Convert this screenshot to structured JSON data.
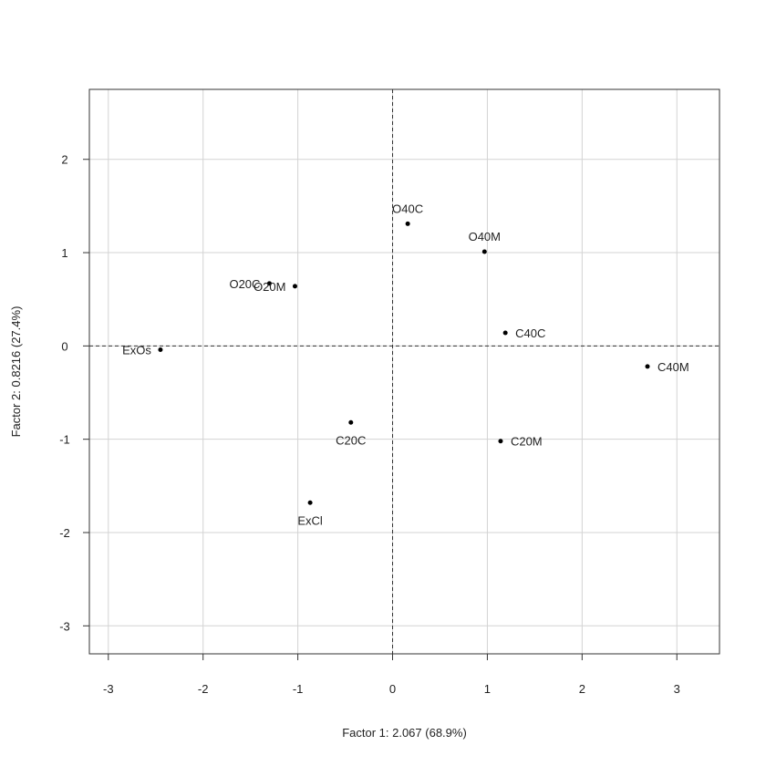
{
  "chart_data": {
    "type": "scatter",
    "title": "",
    "xlabel": "Factor 1: 2.067 (68.9%)",
    "ylabel": "Factor 2: 0.8216 (27.4%)",
    "xlim": [
      -3.2,
      3.45
    ],
    "ylim": [
      -3.3,
      2.75
    ],
    "xticks": [
      -3,
      -2,
      -1,
      0,
      1,
      2,
      3
    ],
    "yticks": [
      -3,
      -2,
      -1,
      0,
      1,
      2
    ],
    "grid": true,
    "reference_lines": {
      "x": 0,
      "y": 0,
      "style": "dashed"
    },
    "points": [
      {
        "label": "O40C",
        "x": 0.16,
        "y": 1.31,
        "label_pos": "above"
      },
      {
        "label": "O40M",
        "x": 0.97,
        "y": 1.01,
        "label_pos": "above"
      },
      {
        "label": "O20C",
        "x": -1.3,
        "y": 0.67,
        "label_pos": "left"
      },
      {
        "label": "O20M",
        "x": -1.03,
        "y": 0.64,
        "label_pos": "left"
      },
      {
        "label": "ExOs",
        "x": -2.45,
        "y": -0.04,
        "label_pos": "left"
      },
      {
        "label": "C40C",
        "x": 1.19,
        "y": 0.14,
        "label_pos": "right"
      },
      {
        "label": "C40M",
        "x": 2.69,
        "y": -0.22,
        "label_pos": "right"
      },
      {
        "label": "C20C",
        "x": -0.44,
        "y": -0.82,
        "label_pos": "below"
      },
      {
        "label": "C20M",
        "x": 1.14,
        "y": -1.02,
        "label_pos": "right"
      },
      {
        "label": "ExCl",
        "x": -0.87,
        "y": -1.68,
        "label_pos": "below"
      }
    ]
  }
}
